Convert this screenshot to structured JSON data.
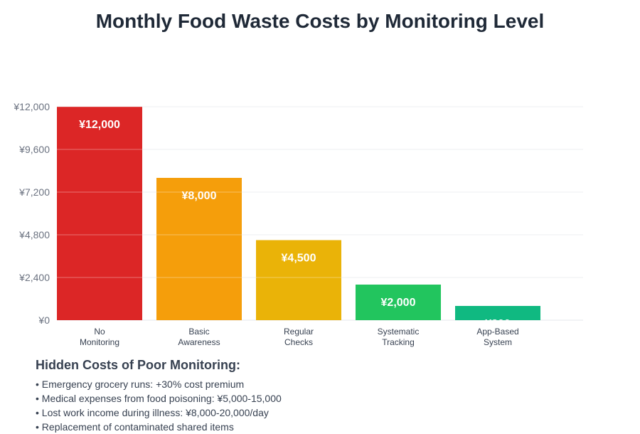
{
  "chart_data": {
    "type": "bar",
    "title": "Monthly Food Waste Costs by Monitoring Level",
    "categories": [
      [
        "No",
        "Monitoring"
      ],
      [
        "Basic",
        "Awareness"
      ],
      [
        "Regular",
        "Checks"
      ],
      [
        "Systematic",
        "Tracking"
      ],
      [
        "App-Based",
        "System"
      ]
    ],
    "values": [
      12000,
      8000,
      4500,
      2000,
      800
    ],
    "data_labels": [
      "¥12,000",
      "¥8,000",
      "¥4,500",
      "¥2,000",
      "¥800"
    ],
    "colors": [
      "#dc2626",
      "#f59e0b",
      "#eab308",
      "#22c55e",
      "#10b981"
    ],
    "yticks": [
      0,
      2400,
      4800,
      7200,
      9600,
      12000
    ],
    "ytick_labels": [
      "¥0",
      "¥2,400",
      "¥4,800",
      "¥7,200",
      "¥9,600",
      "¥12,000"
    ],
    "ylim": [
      0,
      12000
    ],
    "grid": true,
    "xlabel": "",
    "ylabel": ""
  },
  "notes": {
    "heading": "Hidden Costs of Poor Monitoring:",
    "items": [
      "• Emergency grocery runs: +30% cost premium",
      "• Medical expenses from food poisoning: ¥5,000-15,000",
      "• Lost work income during illness: ¥8,000-20,000/day",
      "• Replacement of contaminated shared items"
    ]
  }
}
